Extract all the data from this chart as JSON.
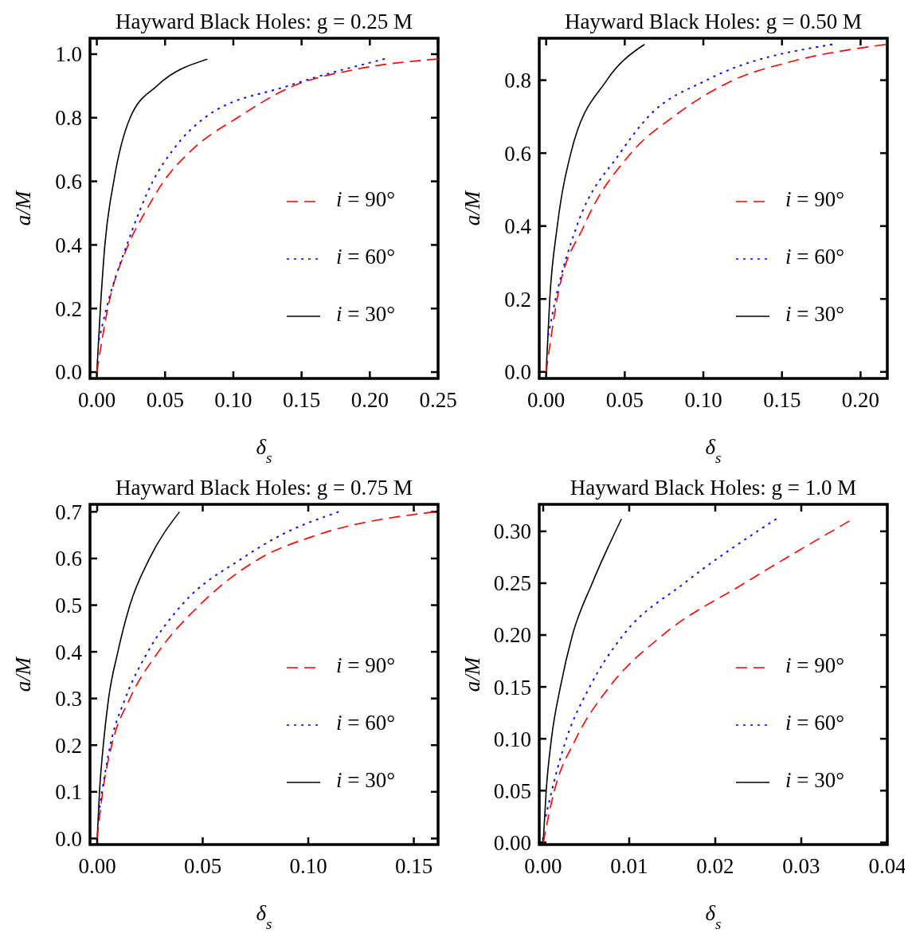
{
  "chart_data": [
    {
      "type": "line",
      "title": "Hayward Black Holes: g = 0.25 M",
      "xlabel": "δ$_{s}$",
      "ylabel": "a/M",
      "xlim": [
        -0.005,
        0.25
      ],
      "ylim": [
        -0.02,
        1.05
      ],
      "xticks": [
        {
          "value": 0,
          "label": "0.00"
        },
        0.05,
        {
          "value": 0.1,
          "label": "0.10"
        },
        0.15,
        {
          "value": 0.2,
          "label": "0.20"
        },
        0.25
      ],
      "yticks": [
        {
          "value": 0,
          "label": "0.0"
        },
        0.2,
        0.4,
        0.6,
        0.8,
        {
          "value": 1,
          "label": "1.0"
        }
      ],
      "legend": "right",
      "grid": false,
      "series": [
        {
          "name": "i = 90°",
          "color": "#ff0000",
          "line_style": "dashed",
          "x": [
            0,
            0.008,
            0.023,
            0.035,
            0.049,
            0.07,
            0.103,
            0.144,
            0.187,
            0.25
          ],
          "values": [
            0,
            0.2,
            0.4,
            0.5,
            0.6,
            0.7,
            0.8,
            0.9,
            0.95,
            0.985
          ]
        },
        {
          "name": "i = 60°",
          "color": "#0000ff",
          "line_style": "dotted",
          "x": [
            0.0015,
            0.007,
            0.022,
            0.041,
            0.056,
            0.079,
            0.14,
            0.211
          ],
          "values": [
            0.1,
            0.2,
            0.4,
            0.6,
            0.7,
            0.8,
            0.9,
            0.985
          ]
        },
        {
          "name": "i = 30°",
          "color": "#000000",
          "line_style": "solid",
          "x": [
            0,
            0.0026,
            0.0059,
            0.0124,
            0.0244,
            0.044,
            0.081
          ],
          "values": [
            0,
            0.2,
            0.4,
            0.6,
            0.8,
            0.9,
            0.984
          ]
        }
      ]
    },
    {
      "type": "line",
      "title": "Hayward Black Holes: g = 0.50 M",
      "xlabel": "δ$_{s}$",
      "ylabel": "a/M",
      "xlim": [
        -0.0044,
        0.217
      ],
      "ylim": [
        -0.018,
        0.915
      ],
      "xticks": [
        {
          "value": 0,
          "label": "0.00"
        },
        0.05,
        {
          "value": 0.1,
          "label": "0.10"
        },
        0.15,
        {
          "value": 0.2,
          "label": "0.20"
        }
      ],
      "yticks": [
        {
          "value": 0,
          "label": "0.0"
        },
        0.2,
        0.4,
        0.6,
        0.8
      ],
      "legend": "right",
      "grid": false,
      "series": [
        {
          "name": "i = 90°",
          "color": "#ff0000",
          "line_style": "dashed",
          "x": [
            0,
            0.007,
            0.024,
            0.054,
            0.081,
            0.119,
            0.155,
            0.216
          ],
          "values": [
            0,
            0.2,
            0.4,
            0.6,
            0.7,
            0.8,
            0.85,
            0.898
          ]
        },
        {
          "name": "i = 60°",
          "color": "#0000ff",
          "line_style": "dotted",
          "x": [
            0.0013,
            0.006,
            0.0195,
            0.047,
            0.065,
            0.102,
            0.182
          ],
          "values": [
            0.1,
            0.2,
            0.4,
            0.6,
            0.7,
            0.8,
            0.898
          ]
        },
        {
          "name": "i = 30°",
          "color": "#000000",
          "line_style": "solid",
          "x": [
            0,
            0.0023,
            0.0071,
            0.0157,
            0.0386,
            0.0625
          ],
          "values": [
            0,
            0.2,
            0.4,
            0.6,
            0.8,
            0.898
          ]
        }
      ]
    },
    {
      "type": "line",
      "title": "Hayward Black Holes: g = 0.75 M",
      "xlabel": "δ$_{s}$",
      "ylabel": "a/M",
      "xlim": [
        -0.0034,
        0.1615
      ],
      "ylim": [
        -0.013,
        0.716
      ],
      "xticks": [
        {
          "value": 0,
          "label": "0.00"
        },
        0.05,
        {
          "value": 0.1,
          "label": "0.10"
        },
        0.15
      ],
      "yticks": [
        {
          "value": 0,
          "label": "0.0"
        },
        0.1,
        0.2,
        0.3,
        0.4,
        0.5,
        0.6,
        0.7
      ],
      "legend": "right",
      "grid": false,
      "series": [
        {
          "name": "i = 90°",
          "color": "#ff0000",
          "line_style": "dashed",
          "x": [
            0,
            0.0026,
            0.0069,
            0.0155,
            0.029,
            0.0485,
            0.077,
            0.104,
            0.16
          ],
          "values": [
            0,
            0.1,
            0.2,
            0.3,
            0.4,
            0.5,
            0.6,
            0.65,
            0.7
          ]
        },
        {
          "name": "i = 60°",
          "color": "#0000ff",
          "line_style": "dotted",
          "x": [
            0.0006,
            0.0023,
            0.0062,
            0.0133,
            0.024,
            0.04,
            0.0686,
            0.087,
            0.1144
          ],
          "values": [
            0.05,
            0.1,
            0.2,
            0.3,
            0.4,
            0.5,
            0.6,
            0.65,
            0.7
          ]
        },
        {
          "name": "i = 30°",
          "color": "#000000",
          "line_style": "solid",
          "x": [
            0,
            0.0011,
            0.0029,
            0.0054,
            0.0098,
            0.0155,
            0.0248,
            0.039
          ],
          "values": [
            0,
            0.1,
            0.2,
            0.3,
            0.4,
            0.5,
            0.6,
            0.7
          ]
        }
      ]
    },
    {
      "type": "line",
      "title": "Hayward Black Holes: g = 1.0 M",
      "xlabel": "δ$_{s}$",
      "ylabel": "a/M",
      "xlim": [
        -0.00046,
        0.04
      ],
      "ylim": [
        -0.002,
        0.326
      ],
      "xticks": [
        {
          "value": 0,
          "label": "0.00"
        },
        0.01,
        0.02,
        0.03,
        0.04
      ],
      "yticks": [
        {
          "value": 0,
          "label": "0.00"
        },
        0.05,
        {
          "value": 0.1,
          "label": "0.10"
        },
        0.15,
        {
          "value": 0.2,
          "label": "0.20"
        },
        0.25,
        {
          "value": 0.3,
          "label": "0.30"
        }
      ],
      "legend": "right",
      "grid": false,
      "series": [
        {
          "name": "i = 90°",
          "color": "#ff0000",
          "line_style": "dashed",
          "x": [
            0,
            0.0013,
            0.0038,
            0.0077,
            0.0139,
            0.0234,
            0.0356
          ],
          "values": [
            0,
            0.05,
            0.1,
            0.15,
            0.2,
            0.25,
            0.31
          ]
        },
        {
          "name": "i = 60°",
          "color": "#0000ff",
          "line_style": "dotted",
          "x": [
            0.0003,
            0.001,
            0.0027,
            0.0054,
            0.0093,
            0.0164,
            0.0271
          ],
          "values": [
            0.025,
            0.05,
            0.1,
            0.15,
            0.2,
            0.25,
            0.312
          ]
        },
        {
          "name": "i = 30°",
          "color": "#000000",
          "line_style": "solid",
          "x": [
            0,
            0.00035,
            0.00096,
            0.002,
            0.0034,
            0.0057,
            0.0091
          ],
          "values": [
            0,
            0.05,
            0.1,
            0.15,
            0.2,
            0.25,
            0.312
          ]
        }
      ]
    }
  ]
}
